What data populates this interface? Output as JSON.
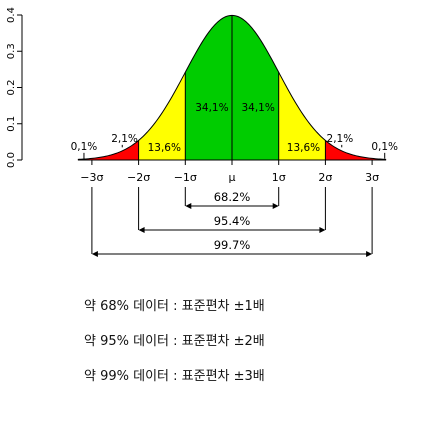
{
  "chart_data": {
    "type": "area",
    "title": "",
    "xlabel": "",
    "ylabel": "",
    "xlim": [
      -3.3,
      3.3
    ],
    "ylim": [
      0,
      0.4
    ],
    "y_ticks": [
      "0.0",
      "0.1",
      "0.2",
      "0.3",
      "0.4"
    ],
    "x_ticks": [
      {
        "value": -3,
        "label": "−3σ"
      },
      {
        "value": -2,
        "label": "−2σ"
      },
      {
        "value": -1,
        "label": "−1σ"
      },
      {
        "value": 0,
        "label": "μ"
      },
      {
        "value": 1,
        "label": "1σ"
      },
      {
        "value": 2,
        "label": "2σ"
      },
      {
        "value": 3,
        "label": "3σ"
      }
    ],
    "regions": [
      {
        "from": -3.3,
        "to": -2,
        "color": "#ff0000",
        "label": "2,1%",
        "label_x": -2.3,
        "label_y": 0.05,
        "leader_x": -2.35,
        "leader_y": 0.035
      },
      {
        "from": -2,
        "to": -1,
        "color": "#ffff00",
        "label": "13,6%",
        "label_x": -1.45,
        "label_y": 0.025
      },
      {
        "from": -1,
        "to": 0,
        "color": "#00cc00",
        "label": "34,1%",
        "label_x": -0.43,
        "label_y": 0.135
      },
      {
        "from": 0,
        "to": 1,
        "color": "#00cc00",
        "label": "34,1%",
        "label_x": 0.56,
        "label_y": 0.135
      },
      {
        "from": 1,
        "to": 2,
        "color": "#ffff00",
        "label": "13,6%",
        "label_x": 1.53,
        "label_y": 0.025
      },
      {
        "from": 2,
        "to": 3.3,
        "color": "#ff0000",
        "label": "2,1%",
        "label_x": 2.31,
        "label_y": 0.05,
        "leader_x": 2.35,
        "leader_y": 0.035
      }
    ],
    "outer_labels": [
      {
        "label": "0,1%",
        "label_x": -3.17,
        "label_y": 0.028,
        "leader_x": -3.17,
        "leader_y": 0.004
      },
      {
        "label": "0,1%",
        "label_x": 3.27,
        "label_y": 0.028,
        "leader_x": 3.27,
        "leader_y": 0.004
      }
    ],
    "intervals": [
      {
        "from": -1,
        "to": 1,
        "label": "68.2%"
      },
      {
        "from": -2,
        "to": 2,
        "label": "95.4%"
      },
      {
        "from": -3,
        "to": 3,
        "label": "99.7%"
      }
    ],
    "colors": {
      "outline": "#000000",
      "divider": "#000000"
    }
  },
  "captions": [
    "약 68% 데이터 : 표준편차 ±1배",
    "약 95% 데이터 : 표준편차 ±2배",
    "약 99% 데이터 : 표준편차 ±3배"
  ]
}
